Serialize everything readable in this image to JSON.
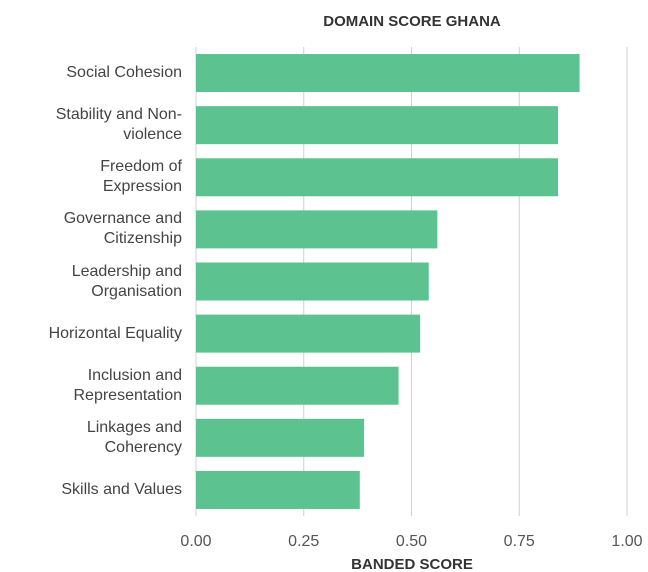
{
  "chart_data": {
    "type": "hbar",
    "title": "DOMAIN SCORE GHANA",
    "x_label": "BANDED SCORE",
    "categories": [
      "Social Cohesion",
      "Stability and Non-violence",
      "Freedom of Expression",
      "Governance and Citizenship",
      "Leadership and Organisation",
      "Horizontal Equality",
      "Inclusion and Representation",
      "Linkages and Coherency",
      "Skills and Values"
    ],
    "values": [
      0.89,
      0.84,
      0.84,
      0.56,
      0.54,
      0.52,
      0.47,
      0.39,
      0.38
    ],
    "color": "#5cc28f",
    "xlim": [
      0,
      1
    ],
    "xticks": [
      {
        "value": 0,
        "label": "0.00"
      },
      {
        "value": 0.25,
        "label": "0.25"
      },
      {
        "value": 0.5,
        "label": "0.50"
      },
      {
        "value": 0.75,
        "label": "0.75"
      },
      {
        "value": 1,
        "label": "1.00"
      }
    ],
    "grid": true
  }
}
